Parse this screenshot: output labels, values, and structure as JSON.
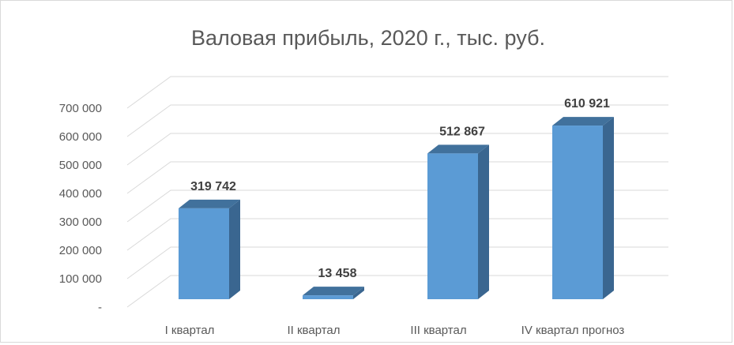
{
  "chart_data": {
    "type": "bar",
    "style": "3d-column",
    "title": "Валовая прибыль, 2020 г., тыс. руб.",
    "categories": [
      "I квартал",
      "II квартал",
      "III квартал",
      "IV квартал прогноз"
    ],
    "series": [
      {
        "values": [
          319742,
          13458,
          512867,
          610921
        ],
        "color": "#5b9bd5"
      }
    ],
    "data_labels": [
      "319 742",
      "13 458",
      "512 867",
      "610 921"
    ],
    "ylim": [
      0,
      700000
    ],
    "yticks": [
      {
        "value": 0,
        "label": "-"
      },
      {
        "value": 100000,
        "label": "100 000"
      },
      {
        "value": 200000,
        "label": "200 000"
      },
      {
        "value": 300000,
        "label": "300 000"
      },
      {
        "value": 400000,
        "label": "400 000"
      },
      {
        "value": 500000,
        "label": "500 000"
      },
      {
        "value": 600000,
        "label": "600 000"
      },
      {
        "value": 700000,
        "label": "700 000"
      }
    ],
    "grid": true,
    "legend": "none",
    "colors": {
      "front": "#5b9bd5",
      "side": "#3a6690",
      "top": "#41719c",
      "grid": "#d9d9d9",
      "text": "#595959"
    }
  }
}
